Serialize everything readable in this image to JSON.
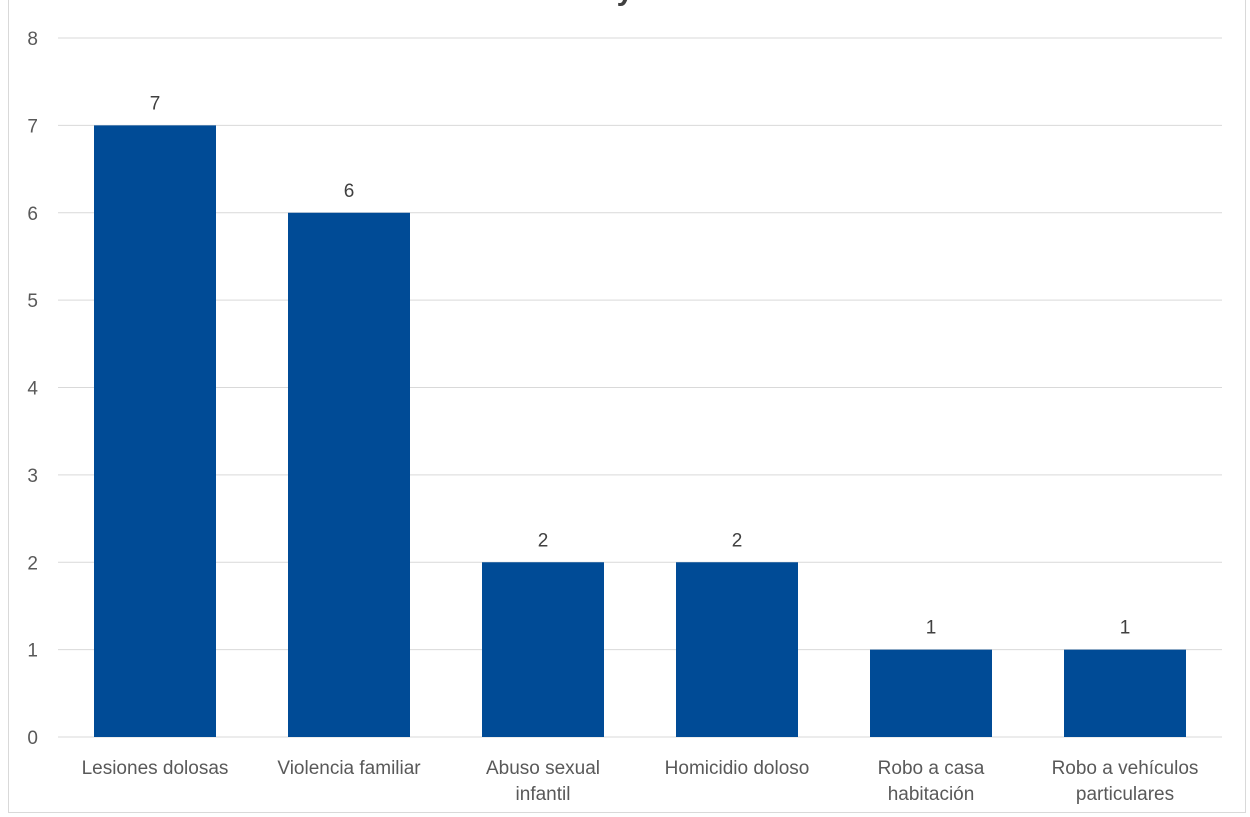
{
  "chart_data": {
    "type": "bar",
    "title_fragment": "y",
    "categories": [
      "Lesiones dolosas",
      "Violencia familiar",
      "Abuso sexual infantil",
      "Homicidio doloso",
      "Robo a casa habitación",
      "Robo a vehículos particulares"
    ],
    "category_lines": [
      [
        "Lesiones dolosas"
      ],
      [
        "Violencia familiar"
      ],
      [
        "Abuso sexual",
        "infantil"
      ],
      [
        "Homicidio doloso"
      ],
      [
        "Robo a casa",
        "habitación"
      ],
      [
        "Robo a vehículos",
        "particulares"
      ]
    ],
    "values": [
      7,
      6,
      2,
      2,
      1,
      1
    ],
    "data_labels": [
      "7",
      "6",
      "2",
      "2",
      "1",
      "1"
    ],
    "yticks": [
      "0",
      "1",
      "2",
      "3",
      "4",
      "5",
      "6",
      "7",
      "8"
    ],
    "ylim": [
      0,
      8
    ],
    "grid": true,
    "colors": {
      "bar": "#004b96",
      "grid": "#d9d9d9",
      "text": "#595959",
      "label": "#404040"
    }
  }
}
